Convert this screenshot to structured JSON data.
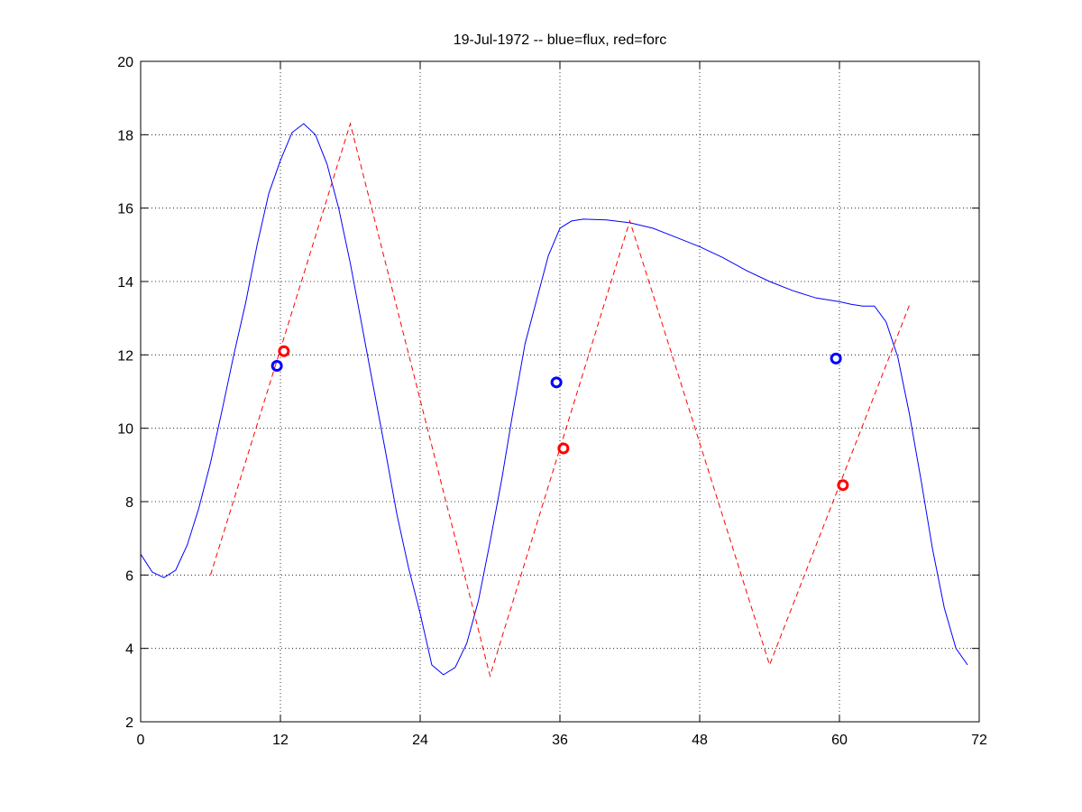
{
  "chart_data": {
    "type": "line",
    "title": "19-Jul-1972 -- blue=flux, red=forc",
    "xlabel": "",
    "ylabel": "",
    "xlim": [
      0,
      72
    ],
    "ylim": [
      2,
      20
    ],
    "xticks": [
      0,
      12,
      24,
      36,
      48,
      60,
      72
    ],
    "yticks": [
      2,
      4,
      6,
      8,
      10,
      12,
      14,
      16,
      18,
      20
    ],
    "grid": true,
    "series": [
      {
        "name": "flux",
        "color": "#0000ff",
        "style": "solid",
        "x": [
          0,
          1,
          2,
          3,
          4,
          5,
          6,
          7,
          8,
          9,
          10,
          11,
          12,
          13,
          14,
          15,
          16,
          17,
          18,
          19,
          20,
          21,
          22,
          23,
          24,
          25,
          26,
          27,
          28,
          29,
          30,
          31,
          32,
          33,
          34,
          35,
          36,
          37,
          38,
          40,
          42,
          44,
          46,
          48,
          50,
          52,
          54,
          56,
          58,
          60,
          61,
          62,
          63,
          64,
          65,
          66,
          67,
          68,
          69,
          70,
          71
        ],
        "y": [
          6.57,
          6.08,
          5.93,
          6.13,
          6.82,
          7.83,
          9.06,
          10.5,
          12.0,
          13.4,
          15.0,
          16.4,
          17.3,
          18.06,
          18.3,
          18.0,
          17.2,
          16.0,
          14.5,
          12.8,
          11.1,
          9.4,
          7.65,
          6.2,
          4.95,
          3.55,
          3.28,
          3.48,
          4.14,
          5.3,
          6.9,
          8.6,
          10.5,
          12.3,
          13.5,
          14.7,
          15.45,
          15.65,
          15.7,
          15.68,
          15.6,
          15.45,
          15.2,
          14.95,
          14.65,
          14.3,
          14.0,
          13.75,
          13.55,
          13.45,
          13.38,
          13.33,
          13.33,
          12.9,
          11.95,
          10.4,
          8.6,
          6.7,
          5.1,
          4.0,
          3.55
        ]
      },
      {
        "name": "forc",
        "color": "#ff0000",
        "style": "dashed",
        "x": [
          6,
          18,
          30,
          42,
          54,
          66
        ],
        "y": [
          6.0,
          18.3,
          3.25,
          15.65,
          3.55,
          13.35
        ]
      }
    ],
    "markers": [
      {
        "name": "flux",
        "color": "#0000ff",
        "x": [
          11.7,
          35.7,
          59.7
        ],
        "y": [
          11.7,
          11.25,
          11.9
        ]
      },
      {
        "name": "forc",
        "color": "#ff0000",
        "x": [
          12.3,
          36.3,
          60.3
        ],
        "y": [
          12.1,
          9.45,
          8.45
        ]
      }
    ]
  }
}
